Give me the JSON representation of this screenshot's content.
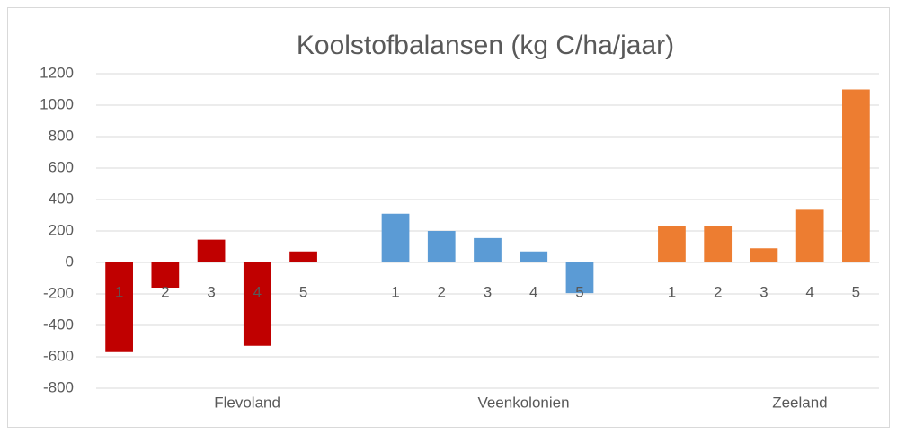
{
  "chart_data": {
    "type": "bar",
    "title": "Koolstofbalansen (kg C/ha/jaar)",
    "categories": [
      "1",
      "2",
      "3",
      "4",
      "5"
    ],
    "series": [
      {
        "name": "Flevoland",
        "color": "#c00000",
        "values": [
          -570,
          -160,
          145,
          -530,
          70
        ]
      },
      {
        "name": "Veenkolonien",
        "color": "#5b9bd5",
        "values": [
          310,
          200,
          155,
          70,
          -195
        ]
      },
      {
        "name": "Zeeland",
        "color": "#ed7d31",
        "values": [
          230,
          230,
          90,
          335,
          1100
        ]
      }
    ],
    "ylim": [
      -800,
      1200
    ],
    "yticks": [
      -800,
      -600,
      -400,
      -200,
      0,
      200,
      400,
      600,
      800,
      1000,
      1200
    ],
    "grid": true
  }
}
